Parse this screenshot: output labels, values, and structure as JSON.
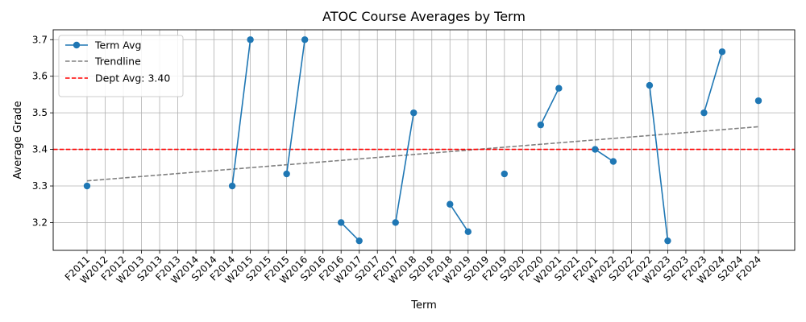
{
  "chart_data": {
    "type": "line",
    "title": "ATOC Course Averages by Term",
    "xlabel": "Term",
    "ylabel": "Average Grade",
    "ylim": [
      3.124,
      3.727
    ],
    "yticks": [
      3.2,
      3.3,
      3.4,
      3.5,
      3.6,
      3.7
    ],
    "ytick_labels": [
      "3.2",
      "3.3",
      "3.4",
      "3.5",
      "3.6",
      "3.7"
    ],
    "grid": true,
    "legend_position": "top-left",
    "categories": [
      "F2011",
      "W2012",
      "F2012",
      "W2013",
      "S2013",
      "F2013",
      "W2014",
      "S2014",
      "F2014",
      "W2015",
      "S2015",
      "F2015",
      "W2016",
      "S2016",
      "F2016",
      "W2017",
      "S2017",
      "F2017",
      "W2018",
      "S2018",
      "F2018",
      "W2019",
      "S2019",
      "F2019",
      "S2020",
      "F2020",
      "W2021",
      "S2021",
      "F2021",
      "W2022",
      "S2022",
      "F2022",
      "W2023",
      "S2023",
      "F2023",
      "W2024",
      "S2024",
      "F2024"
    ],
    "series": [
      {
        "name": "Term Avg",
        "color": "#1f77b4",
        "values": [
          3.3,
          null,
          null,
          null,
          null,
          null,
          null,
          null,
          3.3,
          3.7,
          null,
          3.333,
          3.7,
          null,
          3.2,
          3.15,
          null,
          3.2,
          3.5,
          null,
          3.25,
          3.175,
          null,
          3.333,
          null,
          3.467,
          3.567,
          null,
          3.4,
          3.367,
          null,
          3.575,
          3.15,
          null,
          3.5,
          3.667,
          null,
          3.533
        ]
      }
    ],
    "trendline": {
      "name": "Trendline",
      "color": "#808080",
      "start": 3.314,
      "end": 3.462
    },
    "reference_line": {
      "name": "Dept Avg: 3.40",
      "value": 3.4,
      "color": "#ff0000"
    }
  }
}
